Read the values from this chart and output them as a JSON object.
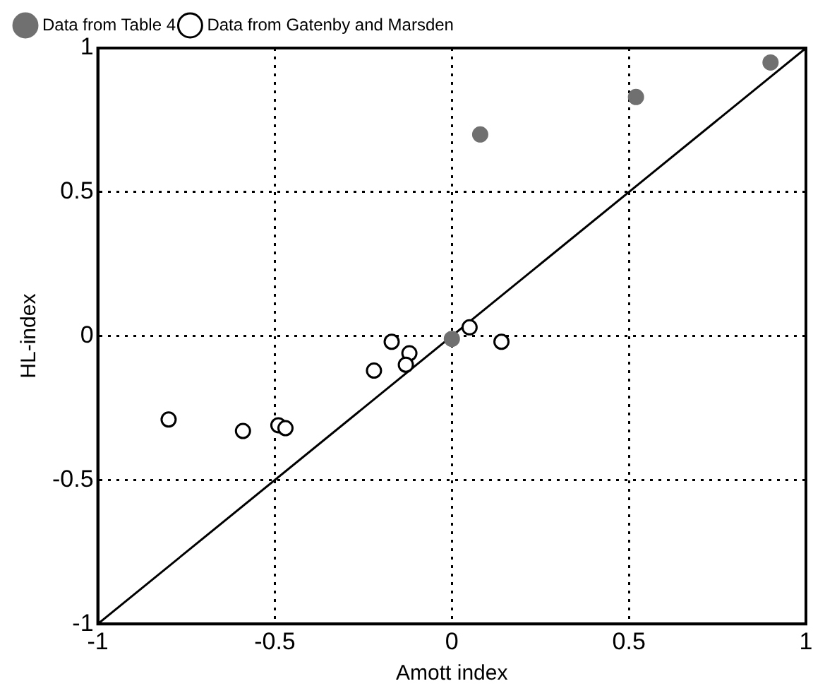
{
  "chart_data": {
    "type": "scatter",
    "xlabel": "Amott index",
    "ylabel": "HL-index",
    "xlim": [
      -1,
      1
    ],
    "ylim": [
      -1,
      1
    ],
    "xticks": [
      -1,
      -0.5,
      0,
      0.5,
      1
    ],
    "yticks": [
      -1,
      -0.5,
      0,
      0.5,
      1
    ],
    "grid": true,
    "legend": "top",
    "marker": "circle",
    "series": [
      {
        "name": "Data from Table 4",
        "color": "#707070",
        "x": [
          0.08,
          0.52,
          0.9,
          0.0
        ],
        "values": [
          0.7,
          0.83,
          0.95,
          -0.01
        ]
      },
      {
        "name": "Data from Gatenby and Marsden",
        "color": "#000000",
        "x": [
          -0.8,
          -0.59,
          -0.49,
          -0.47,
          -0.22,
          -0.17,
          -0.12,
          -0.13,
          0.05,
          0.14
        ],
        "values": [
          -0.29,
          -0.33,
          -0.31,
          -0.32,
          -0.12,
          -0.02,
          -0.06,
          -0.1,
          0.03,
          -0.02
        ]
      },
      {
        "type": "line",
        "color": "#000000",
        "x": [
          -1,
          1
        ],
        "values": [
          -1,
          1
        ],
        "marker": "none",
        "line_style": "solid"
      }
    ]
  }
}
